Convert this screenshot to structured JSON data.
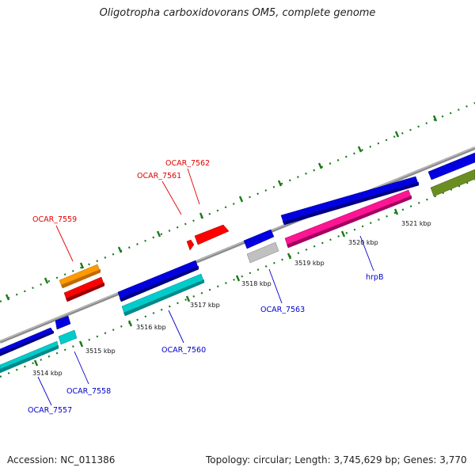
{
  "title": "Oligotropha carboxidovorans OM5, complete genome",
  "footer": {
    "accession": "Accession: NC_011386",
    "topology": "Topology: circular; Length: 3,745,629 bp; Genes: 3,770"
  },
  "colors": {
    "backbone": "#8c8c8c",
    "ticks": "#1a7a1a",
    "red_label": "#e00000",
    "blue_label": "#0000cc"
  },
  "kbp_labels": [
    "3514 kbp",
    "3515 kbp",
    "3516 kbp",
    "3517 kbp",
    "3518 kbp",
    "3519 kbp",
    "3520 kbp",
    "3521 kbp"
  ],
  "genes": [
    {
      "name": "OCAR_7557",
      "color": "#0000cc"
    },
    {
      "name": "OCAR_7558",
      "color": "#0000cc"
    },
    {
      "name": "OCAR_7559",
      "color": "#e00000"
    },
    {
      "name": "OCAR_7560",
      "color": "#0000cc"
    },
    {
      "name": "OCAR_7561",
      "color": "#e00000"
    },
    {
      "name": "OCAR_7562",
      "color": "#e00000"
    },
    {
      "name": "OCAR_7563",
      "color": "#0000cc"
    },
    {
      "name": "hrpB",
      "color": "#0000cc"
    }
  ]
}
